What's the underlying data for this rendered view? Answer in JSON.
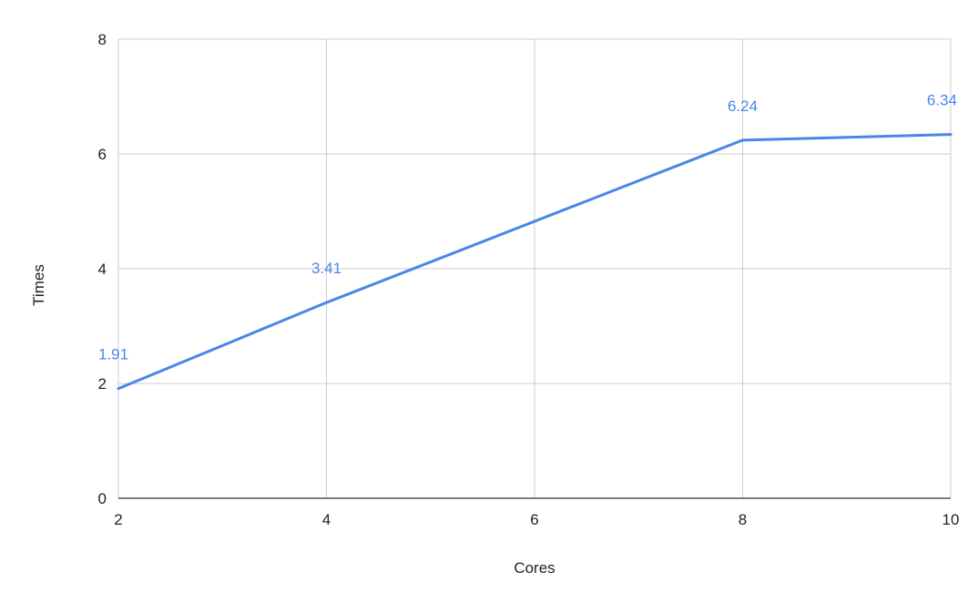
{
  "chart_data": {
    "type": "line",
    "xlabel": "Cores",
    "ylabel": "Times",
    "xlim": [
      2,
      10
    ],
    "ylim": [
      0,
      8
    ],
    "x_ticks": [
      2,
      4,
      6,
      8,
      10
    ],
    "y_ticks": [
      0,
      2,
      4,
      6,
      8
    ],
    "grid": true,
    "legend": "none",
    "color": "#4a86e8",
    "series": [
      {
        "x": [
          2,
          4,
          8,
          10
        ],
        "y": [
          1.91,
          3.41,
          6.24,
          6.34
        ],
        "labels": [
          "1.91",
          "3.41",
          "6.24",
          "6.34"
        ]
      }
    ]
  }
}
